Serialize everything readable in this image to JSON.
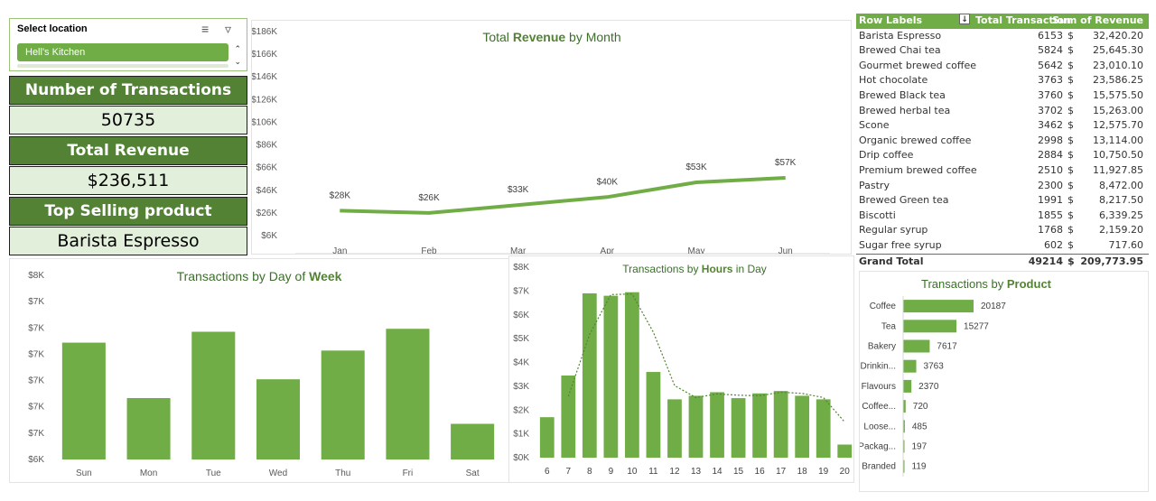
{
  "slicer": {
    "title": "Select location",
    "selected": "Hell's Kitchen"
  },
  "kpis": {
    "transactions_label": "Number of Transactions",
    "transactions_value": "50735",
    "revenue_label": "Total Revenue",
    "revenue_value": "$236,511",
    "top_label": "Top Selling product",
    "top_value": "Barista Espresso"
  },
  "colors": {
    "accent": "#70ad47",
    "dark": "#548235",
    "light": "#e2efda"
  },
  "pivot": {
    "headers": [
      "Row Labels",
      "Total Transaction",
      "Sum of Revenue"
    ],
    "rows": [
      [
        "Barista Espresso",
        "6153",
        "$",
        "32,420.20"
      ],
      [
        "Brewed Chai tea",
        "5824",
        "$",
        "25,645.30"
      ],
      [
        "Gourmet brewed coffee",
        "5642",
        "$",
        "23,010.10"
      ],
      [
        "Hot chocolate",
        "3763",
        "$",
        "23,586.25"
      ],
      [
        "Brewed Black tea",
        "3760",
        "$",
        "15,575.50"
      ],
      [
        "Brewed herbal tea",
        "3702",
        "$",
        "15,263.00"
      ],
      [
        "Scone",
        "3462",
        "$",
        "12,575.70"
      ],
      [
        "Organic brewed coffee",
        "2998",
        "$",
        "13,114.00"
      ],
      [
        "Drip coffee",
        "2884",
        "$",
        "10,750.50"
      ],
      [
        "Premium brewed coffee",
        "2510",
        "$",
        "11,927.85"
      ],
      [
        "Pastry",
        "2300",
        "$",
        "8,472.00"
      ],
      [
        "Brewed Green tea",
        "1991",
        "$",
        "8,217.50"
      ],
      [
        "Biscotti",
        "1855",
        "$",
        "6,339.25"
      ],
      [
        "Regular syrup",
        "1768",
        "$",
        "2,159.20"
      ],
      [
        "Sugar free syrup",
        "602",
        "$",
        "717.60"
      ]
    ],
    "total": [
      "Grand Total",
      "49214",
      "$",
      "209,773.95"
    ]
  },
  "chart_data": [
    {
      "id": "revenue",
      "type": "line",
      "title_parts": [
        "Total ",
        "Revenue",
        " by Month"
      ],
      "categories": [
        "Jan",
        "Feb",
        "Mar",
        "Apr",
        "May",
        "Jun"
      ],
      "values": [
        28,
        26,
        33,
        40,
        53,
        57
      ],
      "data_labels": [
        "$28K",
        "$26K",
        "$33K",
        "$40K",
        "$53K",
        "$57K"
      ],
      "y_ticks": [
        "$186K",
        "$166K",
        "$146K",
        "$126K",
        "$106K",
        "$86K",
        "$66K",
        "$46K",
        "$26K",
        "$6K"
      ],
      "ylim": [
        6,
        186
      ],
      "ylabel": "",
      "xlabel": ""
    },
    {
      "id": "weekday",
      "type": "bar",
      "title_parts": [
        "Transactions by Day of ",
        "Week",
        ""
      ],
      "categories": [
        "Sun",
        "Mon",
        "Tue",
        "Wed",
        "Thu",
        "Fri",
        "Sat"
      ],
      "values": [
        7.35,
        6.79,
        7.46,
        6.98,
        7.27,
        7.49,
        6.53
      ],
      "y_ticks": [
        "$8K",
        "$7K",
        "$7K",
        "$7K",
        "$7K",
        "$7K",
        "$7K",
        "$6K"
      ],
      "ylim": [
        6.17,
        8.03
      ]
    },
    {
      "id": "hours",
      "type": "bar",
      "title_parts": [
        "Transactions by ",
        "Hours",
        " in Day"
      ],
      "categories": [
        "6",
        "7",
        "8",
        "9",
        "10",
        "11",
        "12",
        "13",
        "14",
        "15",
        "16",
        "17",
        "18",
        "19",
        "20"
      ],
      "values": [
        1.7,
        3.45,
        6.9,
        6.8,
        6.95,
        3.6,
        2.45,
        2.6,
        2.75,
        2.5,
        2.7,
        2.8,
        2.6,
        2.45,
        0.55
      ],
      "y_ticks": [
        "$8K",
        "$7K",
        "$6K",
        "$5K",
        "$4K",
        "$3K",
        "$2K",
        "$1K",
        "$0K"
      ],
      "ylim": [
        0,
        8
      ],
      "trendline": "moving-average"
    },
    {
      "id": "product",
      "type": "bar",
      "orientation": "horizontal",
      "title_parts": [
        "Transactions by ",
        "Product",
        ""
      ],
      "categories": [
        "Coffee",
        "Tea",
        "Bakery",
        "Drinkin...",
        "Flavours",
        "Coffee...",
        "Loose...",
        "Packag...",
        "Branded"
      ],
      "values": [
        20187,
        15277,
        7617,
        3763,
        2370,
        720,
        485,
        197,
        119
      ]
    }
  ]
}
